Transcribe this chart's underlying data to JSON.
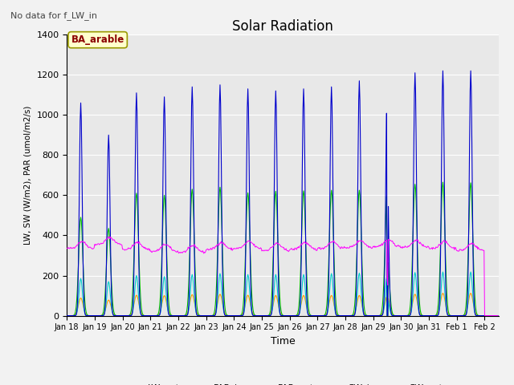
{
  "title": "Solar Radiation",
  "subtitle": "No data for f_LW_in",
  "ylabel": "LW, SW (W/m2), PAR (umol/m2/s)",
  "xlabel": "Time",
  "site_label": "BA_arable",
  "ylim": [
    0,
    1400
  ],
  "background_color": "#e8e8e8",
  "fig_background": "#f2f2f2",
  "grid_color": "#ffffff",
  "colors": {
    "LW_out": "#ff00ff",
    "PAR_in": "#0000cc",
    "PAR_out": "#00cccc",
    "SW_in": "#00bb00",
    "SW_out": "#ff9900"
  },
  "xtick_labels": [
    "Jan 18",
    "Jan 19",
    "Jan 20",
    "Jan 21",
    "Jan 22",
    "Jan 23",
    "Jan 24",
    "Jan 25",
    "Jan 26",
    "Jan 27",
    "Jan 28",
    "Jan 29",
    "Jan 30",
    "Jan 31",
    "Feb 1",
    "Feb 2"
  ],
  "PAR_in_peaks": [
    1060,
    900,
    1110,
    1090,
    1140,
    1150,
    1130,
    1120,
    1130,
    1140,
    1170,
    1100,
    1210,
    1220,
    1220
  ],
  "PAR_out_peaks": [
    185,
    170,
    200,
    195,
    205,
    210,
    205,
    205,
    205,
    210,
    212,
    195,
    215,
    218,
    218
  ],
  "SW_in_peaks": [
    490,
    435,
    610,
    600,
    630,
    640,
    612,
    620,
    622,
    625,
    625,
    618,
    655,
    665,
    662
  ],
  "SW_out_peaks": [
    88,
    78,
    102,
    100,
    105,
    107,
    102,
    101,
    101,
    101,
    101,
    96,
    107,
    112,
    112
  ],
  "lw_base": [
    335,
    355,
    330,
    320,
    315,
    330,
    335,
    325,
    330,
    335,
    340,
    345,
    340,
    335,
    325
  ]
}
